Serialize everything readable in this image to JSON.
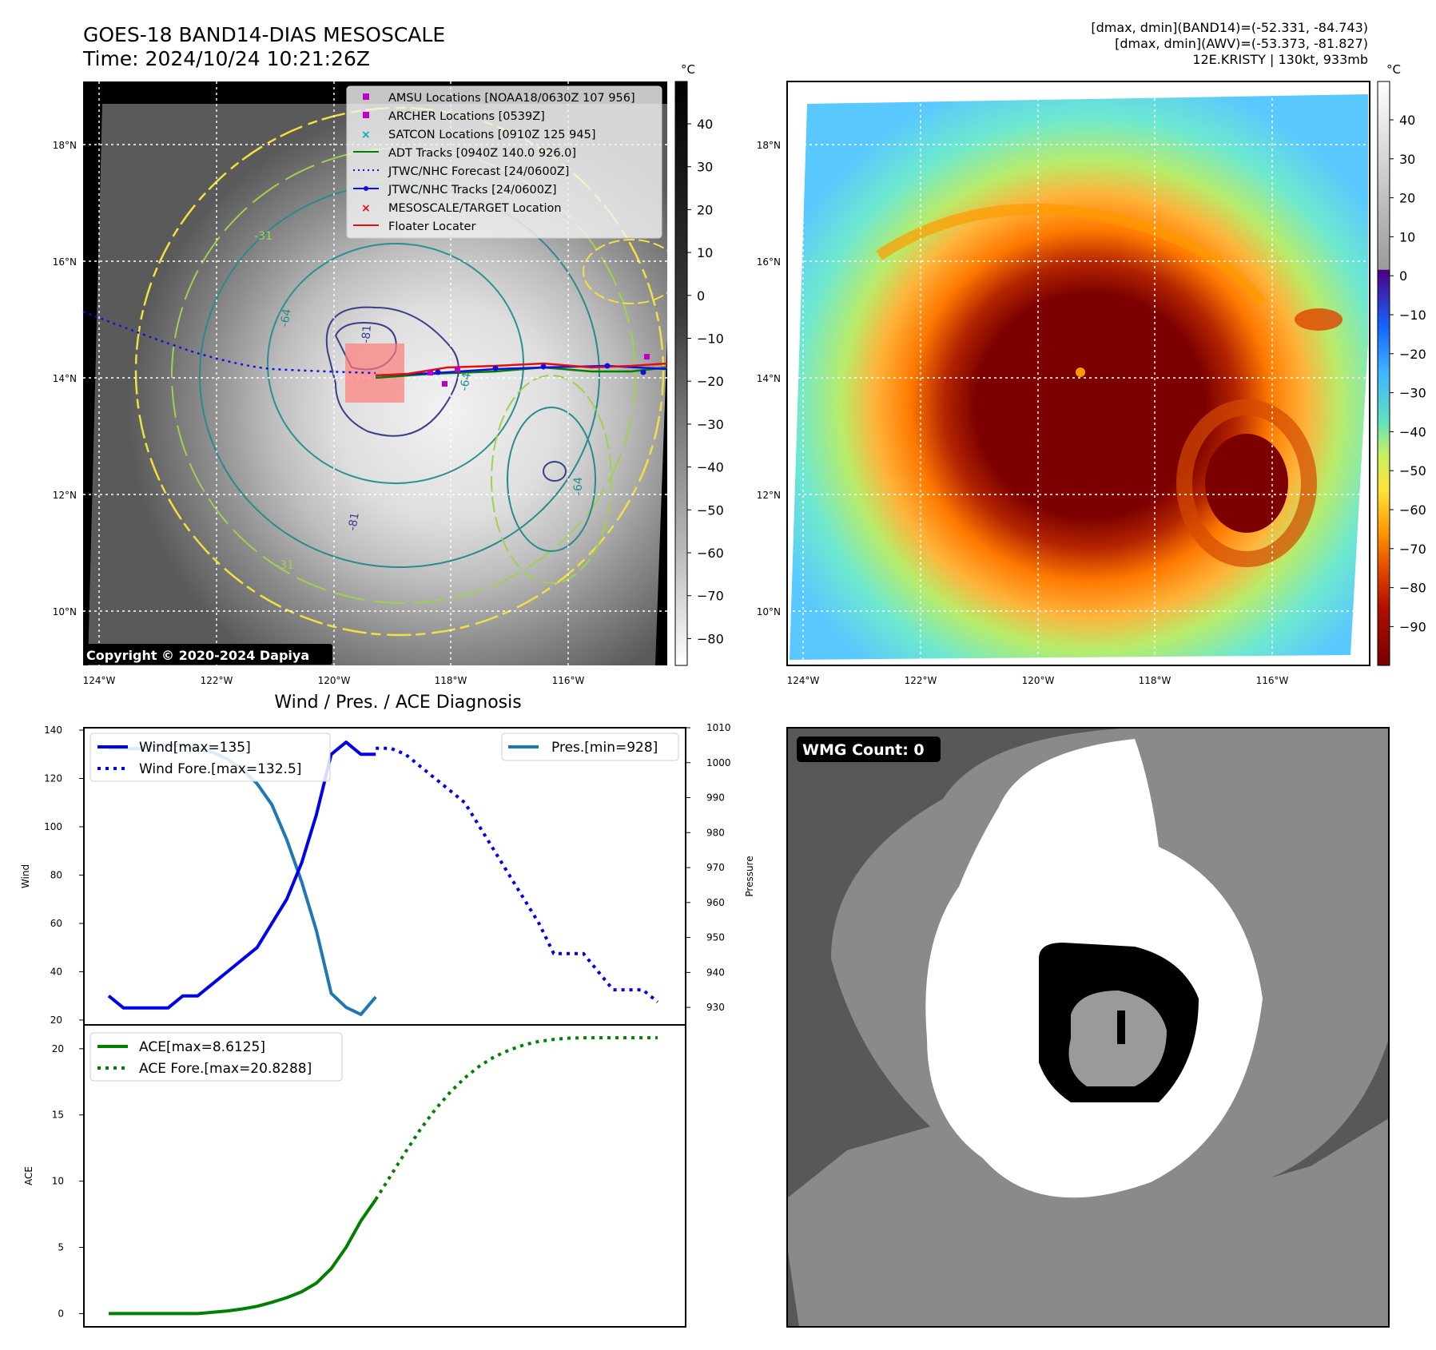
{
  "header": {
    "title_line1": "GOES-18 BAND14-DIAS MESOSCALE",
    "title_line2": "Time: 2024/10/24 10:21:26Z",
    "stats_line1": "[dmax, dmin](BAND14)=(-52.331, -84.743)",
    "stats_line2": "[dmax, dmin](AWV)=(-53.373, -81.827)",
    "stats_line3": "12E.KRISTY | 130kt, 933mb"
  },
  "map_axes": {
    "lat_ticks": [
      "18°N",
      "16°N",
      "14°N",
      "12°N",
      "10°N"
    ],
    "lon_ticks": [
      "124°W",
      "122°W",
      "120°W",
      "118°W",
      "116°W"
    ],
    "copyright": "Copyright © 2020-2024 Dapiya",
    "contour_labels": [
      "-64",
      "-31",
      "-81",
      "-64",
      "-31",
      "-64",
      "-81"
    ]
  },
  "legend": {
    "items": [
      "AMSU Locations [NOAA18/0630Z 107 956]",
      "ARCHER Locations [0539Z]",
      "SATCON Locations [0910Z 125 945]",
      "ADT Tracks [0940Z 140.0 926.0]",
      "JTWC/NHC Forecast [24/0600Z]",
      "JTWC/NHC Tracks [24/0600Z]",
      "MESOSCALE/TARGET Location",
      "Floater Locater"
    ]
  },
  "colorbar_gray": {
    "unit": "°C",
    "ticks": [
      "40",
      "30",
      "20",
      "10",
      "0",
      "−10",
      "−20",
      "−30",
      "−40",
      "−50",
      "−60",
      "−70",
      "−80"
    ]
  },
  "colorbar_color": {
    "unit": "°C",
    "ticks": [
      "40",
      "30",
      "20",
      "10",
      "0",
      "−10",
      "−20",
      "−30",
      "−40",
      "−50",
      "−60",
      "−70",
      "−80",
      "−90"
    ]
  },
  "diagnosis": {
    "title": "Wind / Pres. / ACE Diagnosis",
    "wind_ylabel": "Wind",
    "pres_ylabel": "Pressure",
    "ace_ylabel": "ACE",
    "legend_wind": "Wind[max=135]",
    "legend_wind_fore": "Wind Fore.[max=132.5]",
    "legend_pres": "Pres.[min=928]",
    "legend_ace": "ACE[max=8.6125]",
    "legend_ace_fore": "ACE Fore.[max=20.8288]",
    "wind_ticks": [
      "140",
      "120",
      "100",
      "80",
      "60",
      "40",
      "20"
    ],
    "pres_ticks": [
      "1010",
      "1000",
      "990",
      "980",
      "970",
      "960",
      "950",
      "940",
      "930"
    ],
    "ace_ticks": [
      "20",
      "15",
      "10",
      "5",
      "0"
    ]
  },
  "wmg": {
    "label": "WMG Count: 0"
  },
  "chart_data": [
    {
      "type": "line",
      "title": "Wind / Pres. / ACE Diagnosis",
      "ylabel": "Wind",
      "ylim": [
        18,
        141
      ],
      "x": [
        0,
        1,
        2,
        3,
        4,
        5,
        6,
        7,
        8,
        9,
        10,
        11,
        12,
        13,
        14,
        15,
        16,
        17,
        18
      ],
      "series": [
        {
          "name": "Wind[max=135]",
          "style": "solid",
          "color": "#0000ee",
          "x": [
            0,
            1,
            2,
            3,
            4,
            5,
            6,
            7,
            8,
            9,
            10,
            11,
            12,
            13,
            14,
            15,
            16,
            17,
            18
          ],
          "values": [
            30,
            25,
            25,
            25,
            25,
            30,
            30,
            35,
            40,
            45,
            50,
            60,
            70,
            85,
            105,
            130,
            135,
            130,
            130
          ]
        },
        {
          "name": "Wind Fore.[max=132.5]",
          "style": "dotted",
          "color": "#0000ee",
          "x": [
            18,
            19,
            20,
            21,
            22,
            23,
            24,
            25,
            26,
            27,
            28,
            29,
            30,
            31,
            32,
            33,
            34,
            35,
            36,
            37
          ],
          "values": [
            132.5,
            132.5,
            130,
            125,
            120,
            115,
            110,
            100,
            90,
            80,
            70,
            60,
            47.5,
            47.5,
            47.5,
            40,
            32.5,
            32.5,
            32.5,
            27.5
          ]
        }
      ]
    },
    {
      "type": "line",
      "ylabel": "Pressure",
      "ylim": [
        925,
        1010
      ],
      "series": [
        {
          "name": "Pres.[min=928]",
          "style": "solid",
          "color": "#1f77b4",
          "x": [
            0,
            1,
            2,
            3,
            4,
            5,
            6,
            7,
            8,
            9,
            10,
            11,
            12,
            13,
            14,
            15,
            16,
            17,
            18
          ],
          "values": [
            1004,
            1004,
            1004,
            1005,
            1005,
            1005,
            1004,
            1003,
            1001,
            998,
            994,
            988,
            978,
            966,
            952,
            934,
            930,
            928,
            933
          ]
        }
      ]
    },
    {
      "type": "line",
      "ylabel": "ACE",
      "ylim": [
        -1,
        21.8
      ],
      "series": [
        {
          "name": "ACE[max=8.6125]",
          "style": "solid",
          "color": "#008000",
          "x": [
            0,
            1,
            2,
            3,
            4,
            5,
            6,
            7,
            8,
            9,
            10,
            11,
            12,
            13,
            14,
            15,
            16,
            17,
            18
          ],
          "values": [
            0,
            0,
            0,
            0,
            0,
            0,
            0,
            0.1,
            0.2,
            0.35,
            0.55,
            0.85,
            1.2,
            1.65,
            2.3,
            3.4,
            5.0,
            7.0,
            8.6125
          ]
        },
        {
          "name": "ACE Fore.[max=20.8288]",
          "style": "dotted",
          "color": "#008000",
          "x": [
            18,
            19,
            20,
            21,
            22,
            23,
            24,
            25,
            26,
            27,
            28,
            29,
            30,
            31,
            32,
            33,
            34,
            35,
            36,
            37
          ],
          "values": [
            8.6125,
            10.4,
            12.2,
            13.9,
            15.4,
            16.7,
            17.8,
            18.7,
            19.4,
            19.9,
            20.3,
            20.55,
            20.7,
            20.8,
            20.82,
            20.83,
            20.8288,
            20.8288,
            20.8288,
            20.8288
          ]
        }
      ]
    }
  ]
}
